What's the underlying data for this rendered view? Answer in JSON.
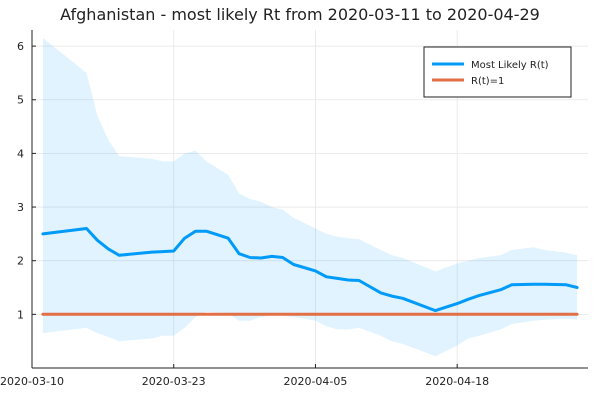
{
  "chart_data": {
    "type": "line",
    "title": "Afghanistan - most likely Rt from 2020-03-11 to 2020-04-29",
    "xlabel": "",
    "ylabel": "",
    "grid": true,
    "legend_position": "top-right",
    "xlim": [
      "2020-03-10",
      "2020-04-30"
    ],
    "ylim": [
      0,
      6.3
    ],
    "x_ticks": [
      "2020-03-10",
      "2020-03-23",
      "2020-04-05",
      "2020-04-18"
    ],
    "y_ticks": [
      1,
      2,
      3,
      4,
      5,
      6
    ],
    "x": [
      "2020-03-11",
      "2020-03-15",
      "2020-03-16",
      "2020-03-17",
      "2020-03-18",
      "2020-03-21",
      "2020-03-22",
      "2020-03-23",
      "2020-03-24",
      "2020-03-25",
      "2020-03-26",
      "2020-03-28",
      "2020-03-29",
      "2020-03-30",
      "2020-03-31",
      "2020-04-01",
      "2020-04-02",
      "2020-04-03",
      "2020-04-05",
      "2020-04-06",
      "2020-04-07",
      "2020-04-08",
      "2020-04-09",
      "2020-04-11",
      "2020-04-12",
      "2020-04-13",
      "2020-04-16",
      "2020-04-18",
      "2020-04-19",
      "2020-04-20",
      "2020-04-22",
      "2020-04-23",
      "2020-04-25",
      "2020-04-26",
      "2020-04-28",
      "2020-04-29"
    ],
    "series": [
      {
        "name": "Most Likely R(t)",
        "color": "#009AF9",
        "values": [
          2.5,
          2.6,
          2.38,
          2.22,
          2.1,
          2.16,
          2.17,
          2.18,
          2.42,
          2.55,
          2.55,
          2.42,
          2.13,
          2.06,
          2.05,
          2.08,
          2.06,
          1.93,
          1.81,
          1.7,
          1.67,
          1.64,
          1.63,
          1.4,
          1.34,
          1.3,
          1.07,
          1.2,
          1.28,
          1.35,
          1.46,
          1.55,
          1.56,
          1.56,
          1.55,
          1.5
        ]
      },
      {
        "name": "R(t)=1",
        "color": "#E26F46",
        "values": [
          1,
          1,
          1,
          1,
          1,
          1,
          1,
          1,
          1,
          1,
          1,
          1,
          1,
          1,
          1,
          1,
          1,
          1,
          1,
          1,
          1,
          1,
          1,
          1,
          1,
          1,
          1,
          1,
          1,
          1,
          1,
          1,
          1,
          1,
          1,
          1
        ]
      }
    ],
    "band": {
      "color": "#009AF9",
      "upper": [
        6.15,
        5.5,
        4.7,
        4.25,
        3.95,
        3.9,
        3.85,
        3.85,
        4.0,
        4.05,
        3.85,
        3.6,
        3.25,
        3.15,
        3.1,
        3.0,
        2.95,
        2.8,
        2.6,
        2.5,
        2.45,
        2.42,
        2.4,
        2.2,
        2.1,
        2.05,
        1.8,
        1.95,
        2.0,
        2.05,
        2.1,
        2.2,
        2.25,
        2.2,
        2.15,
        2.1
      ],
      "lower": [
        0.65,
        0.75,
        0.65,
        0.58,
        0.5,
        0.55,
        0.6,
        0.6,
        0.75,
        0.95,
        1.05,
        1.02,
        0.88,
        0.88,
        0.95,
        0.98,
        0.98,
        0.95,
        0.88,
        0.78,
        0.72,
        0.72,
        0.75,
        0.6,
        0.5,
        0.45,
        0.22,
        0.42,
        0.55,
        0.6,
        0.72,
        0.82,
        0.88,
        0.9,
        0.92,
        0.9
      ]
    }
  }
}
